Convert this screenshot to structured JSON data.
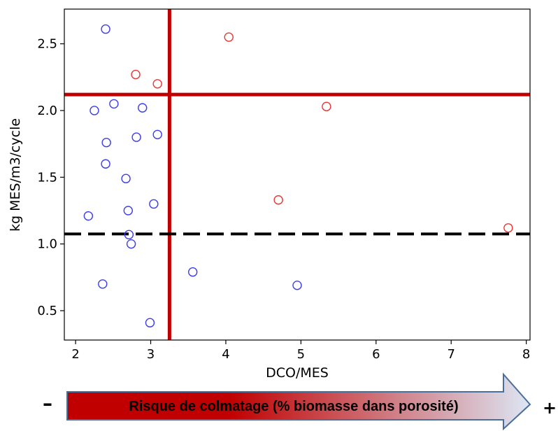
{
  "chart_data": {
    "type": "scatter",
    "title": "",
    "xlabel": "DCO/MES",
    "ylabel": "kg MES/m3/cycle",
    "xlim": [
      1.85,
      8.05
    ],
    "ylim": [
      0.28,
      2.76
    ],
    "xticks": [
      "2",
      "3",
      "4",
      "5",
      "6",
      "7",
      "8"
    ],
    "yticks": [
      "0.5",
      "1.0",
      "1.5",
      "2.0",
      "2.5"
    ],
    "grid": false,
    "series": [
      {
        "color": "#3c3cf0",
        "points": [
          [
            2.4,
            2.61
          ],
          [
            2.51,
            2.05
          ],
          [
            2.25,
            2.0
          ],
          [
            2.89,
            2.02
          ],
          [
            2.41,
            1.76
          ],
          [
            2.81,
            1.8
          ],
          [
            3.09,
            1.82
          ],
          [
            2.4,
            1.6
          ],
          [
            2.67,
            1.49
          ],
          [
            3.04,
            1.3
          ],
          [
            2.7,
            1.25
          ],
          [
            2.17,
            1.21
          ],
          [
            2.71,
            1.07
          ],
          [
            2.74,
            1.0
          ],
          [
            3.56,
            0.79
          ],
          [
            2.36,
            0.7
          ],
          [
            4.95,
            0.69
          ],
          [
            2.99,
            0.41
          ]
        ]
      },
      {
        "color": "#ee3333",
        "points": [
          [
            4.04,
            2.55
          ],
          [
            2.8,
            2.27
          ],
          [
            3.09,
            2.2
          ],
          [
            5.34,
            2.03
          ],
          [
            4.7,
            1.33
          ],
          [
            7.76,
            1.12
          ]
        ]
      }
    ],
    "reference_lines": [
      {
        "orientation": "vertical",
        "x": 3.25,
        "color": "#c00000",
        "style": "solid"
      },
      {
        "orientation": "horizontal",
        "y": 2.12,
        "color": "#c00000",
        "style": "solid"
      },
      {
        "orientation": "horizontal",
        "y": 1.075,
        "color": "#000000",
        "style": "dashed"
      }
    ]
  },
  "risk_arrow": {
    "label": "Risque de colmatage (% biomasse dans porosité)",
    "minus": "–",
    "plus": "+",
    "color_start": "#c00000",
    "color_end": "#dde6f4"
  }
}
